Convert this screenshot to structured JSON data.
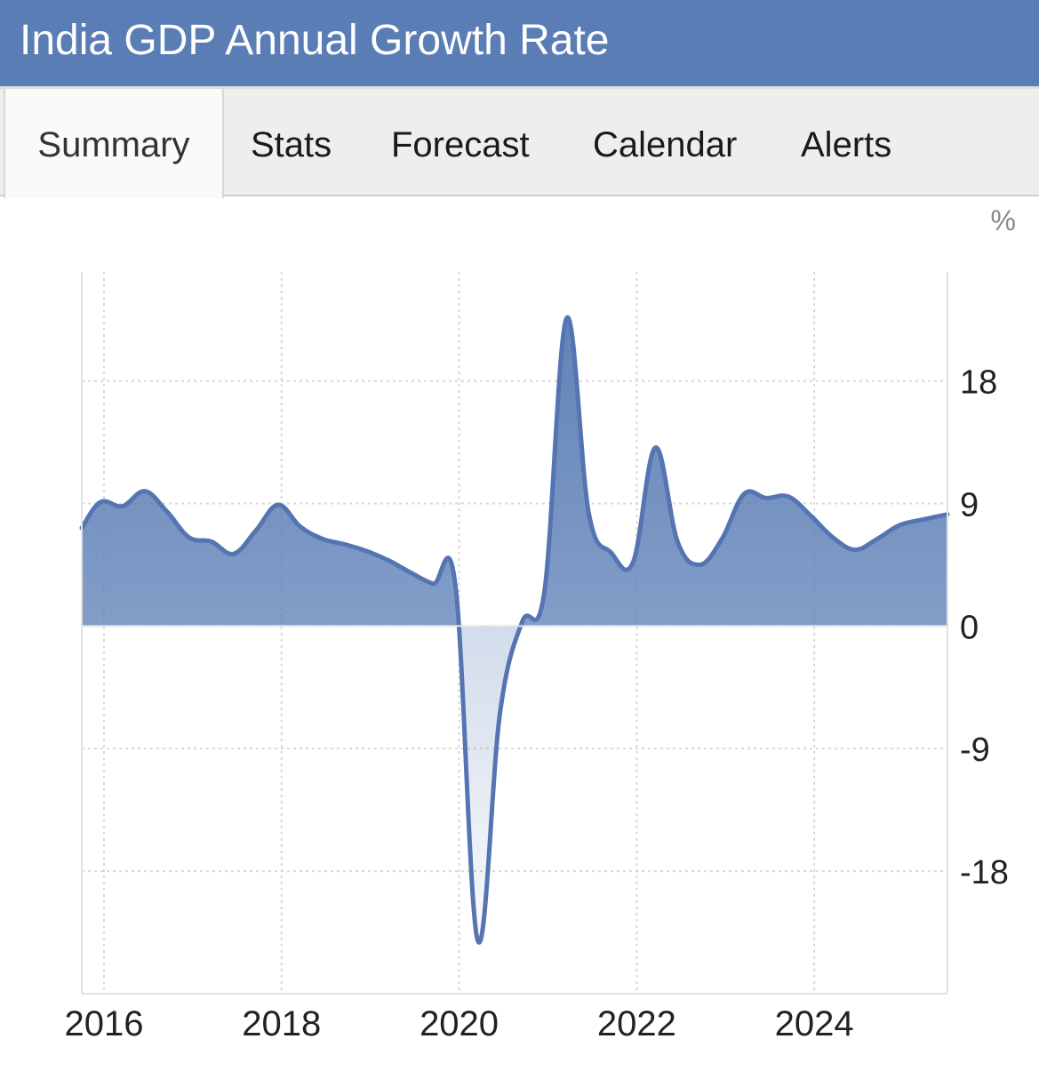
{
  "header": {
    "title": "India GDP Annual Growth Rate"
  },
  "tabs": [
    {
      "label": "Summary",
      "active": true
    },
    {
      "label": "Stats",
      "active": false
    },
    {
      "label": "Forecast",
      "active": false
    },
    {
      "label": "Calendar",
      "active": false
    },
    {
      "label": "Alerts",
      "active": false
    }
  ],
  "colors": {
    "accent": "#5a7db5",
    "line": "#5574b2",
    "grid": "#d8d8d8"
  },
  "chart_data": {
    "type": "area",
    "title": "",
    "unit_label": "%",
    "xlabel": "",
    "ylabel": "",
    "x_ticks": [
      "2016",
      "2018",
      "2020",
      "2022",
      "2024"
    ],
    "y_ticks": [
      18,
      9,
      0,
      -9,
      -18
    ],
    "ylim": [
      -27,
      26
    ],
    "xlim": [
      2015.75,
      2025.5
    ],
    "grid": true,
    "y_axis_side": "right",
    "series": [
      {
        "x": [
          2015.75,
          2015.96,
          2016.21,
          2016.46,
          2016.71,
          2016.96,
          2017.21,
          2017.46,
          2017.71,
          2017.96,
          2018.21,
          2018.46,
          2018.71,
          2018.96,
          2019.21,
          2019.46,
          2019.71,
          2019.96,
          2020.21,
          2020.46,
          2020.71,
          2020.96,
          2021.21,
          2021.46,
          2021.71,
          2021.96,
          2022.21,
          2022.46,
          2022.71,
          2022.96,
          2023.21,
          2023.46,
          2023.71,
          2023.96,
          2024.21,
          2024.46,
          2024.71,
          2024.96,
          2025.21,
          2025.5
        ],
        "y": [
          7.2,
          9.1,
          8.8,
          9.9,
          8.4,
          6.5,
          6.2,
          5.3,
          7.0,
          8.9,
          7.3,
          6.4,
          6.0,
          5.5,
          4.8,
          3.9,
          3.1,
          2.9,
          -23.1,
          -6.4,
          0.3,
          2.5,
          22.6,
          8.3,
          5.4,
          4.7,
          13.1,
          6.2,
          4.5,
          6.4,
          9.7,
          9.4,
          9.5,
          8.1,
          6.5,
          5.6,
          6.4,
          7.4,
          7.8,
          8.2
        ]
      }
    ]
  }
}
